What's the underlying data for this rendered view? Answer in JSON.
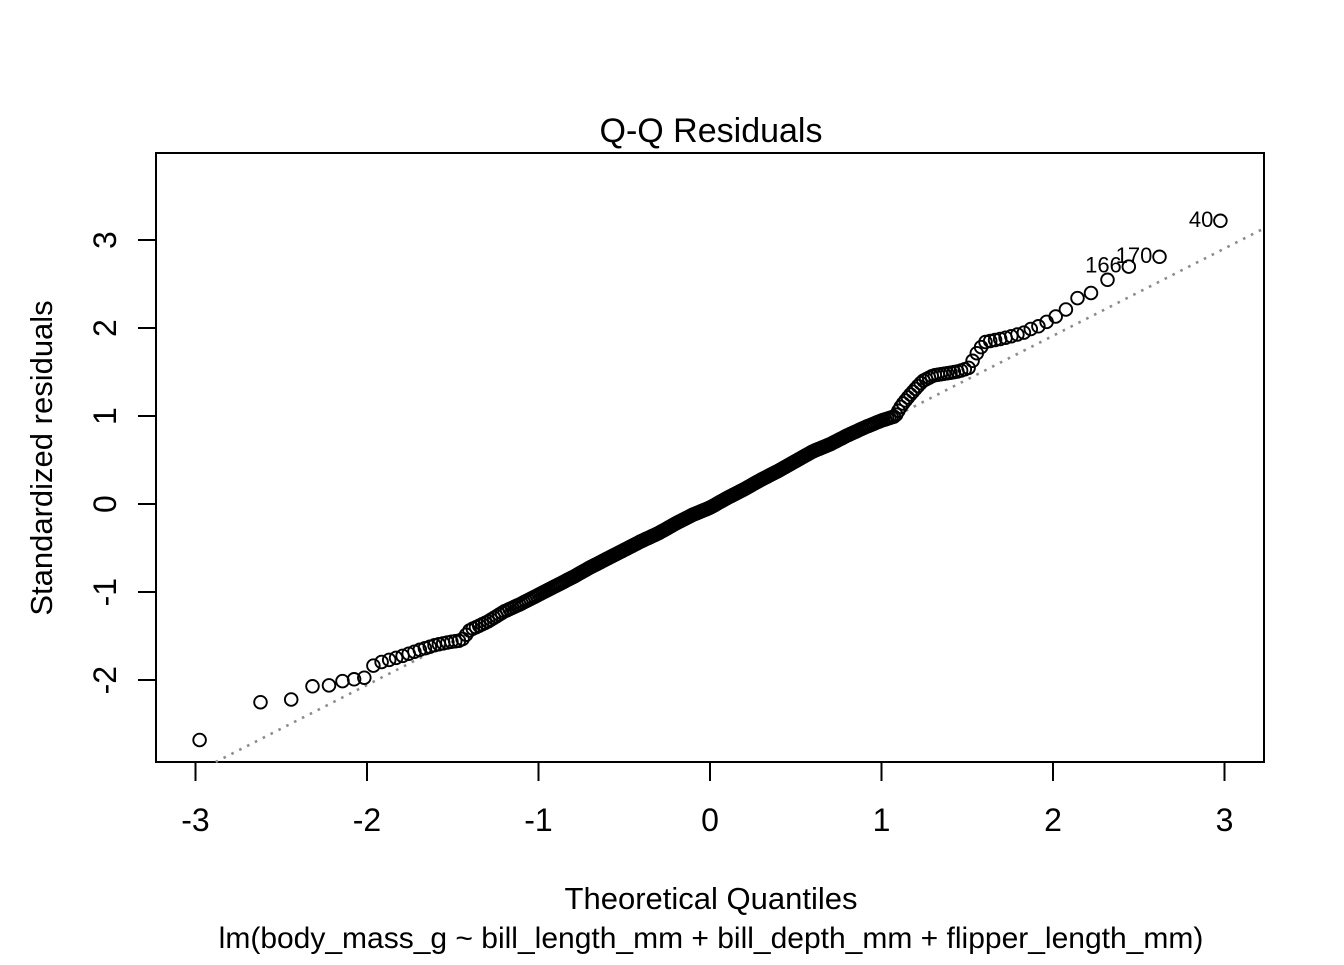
{
  "title": "Q-Q Residuals",
  "x_axis": {
    "label": "Theoretical Quantiles"
  },
  "y_axis": {
    "label": "Standardized residuals"
  },
  "caption": "lm(body_mass_g ~ bill_length_mm + bill_depth_mm + flipper_length_mm)",
  "colors": {
    "points": "#000000",
    "reference_line": "#8c8c8c",
    "text": "#000000",
    "background": "#ffffff"
  },
  "chart_data": {
    "type": "scatter",
    "title": "Q-Q Residuals",
    "xlabel": "Theoretical Quantiles",
    "ylabel": "Standardized residuals",
    "subtitle": "lm(body_mass_g ~ bill_length_mm + bill_depth_mm + flipper_length_mm)",
    "n_points": 342,
    "xlim": [
      -3.23,
      3.23
    ],
    "ylim": [
      -2.93,
      3.99
    ],
    "x_ticks": [
      -3,
      -2,
      -1,
      0,
      1,
      2,
      3
    ],
    "y_ticks": [
      -2,
      -1,
      0,
      1,
      2,
      3
    ],
    "grid": false,
    "legend": "none",
    "marker": "open-circle",
    "reference_line": {
      "type": "qqline",
      "style": "dotted",
      "slope": 0.992,
      "intercept": -0.071
    },
    "labeled_points": [
      {
        "label": "40",
        "x": 2.976,
        "y": 3.22
      },
      {
        "label": "170",
        "x": 2.62,
        "y": 2.81
      },
      {
        "label": "166",
        "x": 2.442,
        "y": 2.7
      }
    ],
    "qq_curve_anchors": [
      [
        -2.976,
        -2.68
      ],
      [
        -2.62,
        -2.25
      ],
      [
        -2.442,
        -2.22
      ],
      [
        -2.318,
        -2.07
      ],
      [
        -2.222,
        -2.06
      ],
      [
        -2.141,
        -2.01
      ],
      [
        -2.074,
        -1.99
      ],
      [
        -2.008,
        -1.97
      ],
      [
        -1.954,
        -1.81
      ],
      [
        -1.905,
        -1.79
      ],
      [
        -1.8,
        -1.73
      ],
      [
        -1.7,
        -1.66
      ],
      [
        -1.6,
        -1.6
      ],
      [
        -1.5,
        -1.56
      ],
      [
        -1.45,
        -1.55
      ],
      [
        -1.4,
        -1.43
      ],
      [
        -1.3,
        -1.34
      ],
      [
        -1.2,
        -1.22
      ],
      [
        -1.1,
        -1.13
      ],
      [
        -1.0,
        -1.03
      ],
      [
        -0.9,
        -0.93
      ],
      [
        -0.8,
        -0.83
      ],
      [
        -0.7,
        -0.72
      ],
      [
        -0.6,
        -0.62
      ],
      [
        -0.5,
        -0.52
      ],
      [
        -0.4,
        -0.42
      ],
      [
        -0.3,
        -0.33
      ],
      [
        -0.2,
        -0.22
      ],
      [
        -0.1,
        -0.12
      ],
      [
        0.0,
        -0.04
      ],
      [
        0.1,
        0.07
      ],
      [
        0.2,
        0.17
      ],
      [
        0.3,
        0.28
      ],
      [
        0.4,
        0.38
      ],
      [
        0.5,
        0.49
      ],
      [
        0.6,
        0.6
      ],
      [
        0.7,
        0.68
      ],
      [
        0.8,
        0.78
      ],
      [
        0.9,
        0.87
      ],
      [
        1.0,
        0.95
      ],
      [
        1.08,
        1.0
      ],
      [
        1.12,
        1.13
      ],
      [
        1.17,
        1.25
      ],
      [
        1.24,
        1.4
      ],
      [
        1.3,
        1.46
      ],
      [
        1.45,
        1.51
      ],
      [
        1.51,
        1.55
      ],
      [
        1.55,
        1.7
      ],
      [
        1.6,
        1.84
      ],
      [
        1.7,
        1.88
      ],
      [
        1.76,
        1.91
      ],
      [
        1.831,
        1.95
      ],
      [
        1.871,
        1.99
      ],
      [
        1.914,
        2.02
      ],
      [
        1.962,
        2.07
      ],
      [
        2.014,
        2.13
      ],
      [
        2.074,
        2.21
      ],
      [
        2.141,
        2.34
      ],
      [
        2.222,
        2.4
      ],
      [
        2.318,
        2.55
      ],
      [
        2.442,
        2.7
      ],
      [
        2.62,
        2.81
      ],
      [
        2.976,
        3.22
      ]
    ]
  }
}
